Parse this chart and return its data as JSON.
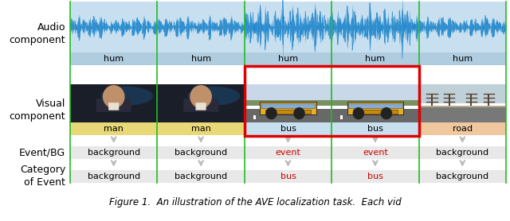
{
  "fig_width": 6.4,
  "fig_height": 2.78,
  "dpi": 100,
  "n_segments": 5,
  "segment_labels_audio": [
    "hum",
    "hum",
    "hum",
    "hum",
    "hum"
  ],
  "segment_labels_visual": [
    "man",
    "man",
    "bus",
    "bus",
    "road"
  ],
  "event_bg_labels": [
    "background",
    "background",
    "event",
    "event",
    "background"
  ],
  "category_labels": [
    "background",
    "background",
    "bus",
    "bus",
    "background"
  ],
  "event_indices": [
    2,
    3
  ],
  "audio_wave_color": "#2288cc",
  "audio_bg_color": "#c8dff0",
  "audio_label_bg": "#b0cde0",
  "man_label_bg": "#e8d878",
  "bus_label_bg": "#c8dff0",
  "road_label_bg": "#f0c8a0",
  "red_box_color": "#dd0000",
  "green_line_color": "#22bb22",
  "arrow_color": "#bbbbbb",
  "normal_text_color": "#000000",
  "red_text_color": "#cc0000",
  "row_bg_color": "#e8e8e8",
  "white": "#ffffff",
  "caption": "Figure 1.  An illustration of the AVE localization task.  Each vid"
}
